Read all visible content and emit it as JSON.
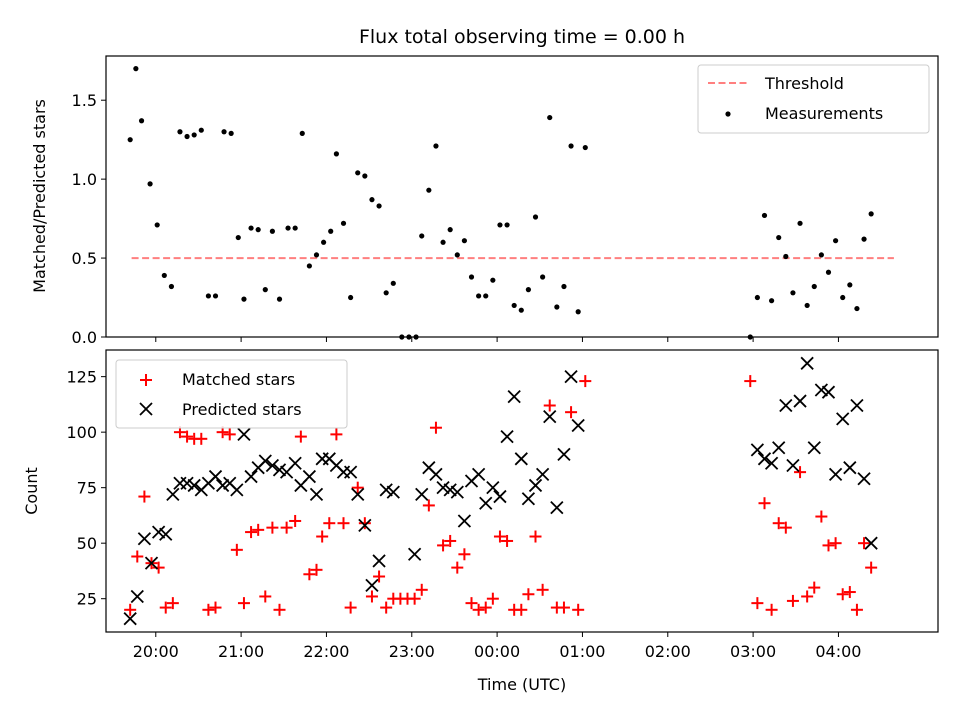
{
  "figure": {
    "title": "Flux total observing time = 0.00 h"
  },
  "chart_data": [
    {
      "type": "scatter",
      "ylabel": "Matched/Predicted stars",
      "xlim": [
        "19:25",
        "05:10"
      ],
      "ylim": [
        0,
        1.78
      ],
      "yticks": [
        0,
        0.5,
        1.0,
        1.5
      ],
      "ytick_labels": [
        "0.0",
        "0.5",
        "1.0",
        "1.5"
      ],
      "xticks": [
        "20:00",
        "21:00",
        "22:00",
        "23:00",
        "00:00",
        "01:00",
        "02:00",
        "03:00",
        "04:00"
      ],
      "legend": {
        "position": "top-right",
        "entries": [
          "Threshold",
          "Measurements"
        ]
      },
      "threshold": {
        "name": "Threshold",
        "value": 0.5,
        "x_range": [
          "19:43",
          "04:39"
        ],
        "color": "#ff7f7f",
        "style": "dashed"
      },
      "series": [
        {
          "name": "Measurements",
          "color": "#000000",
          "marker": "dot",
          "points": [
            [
              "19:42",
              1.25
            ],
            [
              "19:46",
              1.7
            ],
            [
              "19:50",
              1.37
            ],
            [
              "19:56",
              0.97
            ],
            [
              "20:01",
              0.71
            ],
            [
              "20:06",
              0.39
            ],
            [
              "20:11",
              0.32
            ],
            [
              "20:17",
              1.3
            ],
            [
              "20:22",
              1.27
            ],
            [
              "20:27",
              1.28
            ],
            [
              "20:32",
              1.31
            ],
            [
              "20:37",
              0.26
            ],
            [
              "20:42",
              0.26
            ],
            [
              "20:48",
              1.3
            ],
            [
              "20:53",
              1.29
            ],
            [
              "20:58",
              0.63
            ],
            [
              "21:02",
              0.24
            ],
            [
              "21:07",
              0.69
            ],
            [
              "21:12",
              0.68
            ],
            [
              "21:17",
              0.3
            ],
            [
              "21:22",
              0.67
            ],
            [
              "21:27",
              0.24
            ],
            [
              "21:33",
              0.69
            ],
            [
              "21:38",
              0.69
            ],
            [
              "21:43",
              1.29
            ],
            [
              "21:48",
              0.45
            ],
            [
              "21:53",
              0.52
            ],
            [
              "21:58",
              0.6
            ],
            [
              "22:03",
              0.67
            ],
            [
              "22:07",
              1.16
            ],
            [
              "22:12",
              0.72
            ],
            [
              "22:17",
              0.25
            ],
            [
              "22:22",
              1.04
            ],
            [
              "22:27",
              1.02
            ],
            [
              "22:32",
              0.87
            ],
            [
              "22:37",
              0.83
            ],
            [
              "22:42",
              0.28
            ],
            [
              "22:47",
              0.34
            ],
            [
              "22:53",
              0.0
            ],
            [
              "22:58",
              0.0
            ],
            [
              "23:03",
              0.0
            ],
            [
              "23:07",
              0.64
            ],
            [
              "23:12",
              0.93
            ],
            [
              "23:17",
              1.21
            ],
            [
              "23:22",
              0.6
            ],
            [
              "23:27",
              0.68
            ],
            [
              "23:32",
              0.52
            ],
            [
              "23:37",
              0.61
            ],
            [
              "23:42",
              0.38
            ],
            [
              "23:47",
              0.26
            ],
            [
              "23:52",
              0.26
            ],
            [
              "23:57",
              0.36
            ],
            [
              "00:02",
              0.71
            ],
            [
              "00:07",
              0.71
            ],
            [
              "00:12",
              0.2
            ],
            [
              "00:17",
              0.17
            ],
            [
              "00:22",
              0.3
            ],
            [
              "00:27",
              0.76
            ],
            [
              "00:32",
              0.38
            ],
            [
              "00:37",
              1.39
            ],
            [
              "00:42",
              0.19
            ],
            [
              "00:47",
              0.32
            ],
            [
              "00:52",
              1.21
            ],
            [
              "00:57",
              0.16
            ],
            [
              "01:02",
              1.2
            ],
            [
              "02:58",
              0.0
            ],
            [
              "03:03",
              0.25
            ],
            [
              "03:08",
              0.77
            ],
            [
              "03:13",
              0.23
            ],
            [
              "03:18",
              0.63
            ],
            [
              "03:23",
              0.51
            ],
            [
              "03:28",
              0.28
            ],
            [
              "03:33",
              0.72
            ],
            [
              "03:38",
              0.2
            ],
            [
              "03:43",
              0.32
            ],
            [
              "03:48",
              0.52
            ],
            [
              "03:53",
              0.41
            ],
            [
              "03:58",
              0.61
            ],
            [
              "04:03",
              0.25
            ],
            [
              "04:08",
              0.33
            ],
            [
              "04:13",
              0.18
            ],
            [
              "04:18",
              0.62
            ],
            [
              "04:23",
              0.78
            ]
          ]
        }
      ]
    },
    {
      "type": "scatter",
      "xlabel": "Time (UTC)",
      "ylabel": "Count",
      "xlim": [
        "19:25",
        "05:10"
      ],
      "ylim": [
        10,
        137
      ],
      "yticks": [
        25,
        50,
        75,
        100,
        125
      ],
      "xticks": [
        "20:00",
        "21:00",
        "22:00",
        "23:00",
        "00:00",
        "01:00",
        "02:00",
        "03:00",
        "04:00"
      ],
      "legend": {
        "position": "top-left",
        "entries": [
          "Matched stars",
          "Predicted stars"
        ]
      },
      "series": [
        {
          "name": "Matched stars",
          "color": "#ff0000",
          "marker": "plus",
          "points": [
            [
              "19:42",
              20
            ],
            [
              "19:47",
              44
            ],
            [
              "19:52",
              71
            ],
            [
              "19:57",
              41
            ],
            [
              "20:02",
              39
            ],
            [
              "20:07",
              21
            ],
            [
              "20:12",
              23
            ],
            [
              "20:17",
              100
            ],
            [
              "20:22",
              98
            ],
            [
              "20:27",
              97
            ],
            [
              "20:32",
              97
            ],
            [
              "20:37",
              20
            ],
            [
              "20:42",
              21
            ],
            [
              "20:47",
              100
            ],
            [
              "20:52",
              99
            ],
            [
              "20:57",
              47
            ],
            [
              "21:02",
              23
            ],
            [
              "21:07",
              55
            ],
            [
              "21:12",
              56
            ],
            [
              "21:17",
              26
            ],
            [
              "21:22",
              57
            ],
            [
              "21:27",
              20
            ],
            [
              "21:32",
              57
            ],
            [
              "21:38",
              60
            ],
            [
              "21:42",
              98
            ],
            [
              "21:48",
              36
            ],
            [
              "21:53",
              38
            ],
            [
              "21:57",
              53
            ],
            [
              "22:02",
              59
            ],
            [
              "22:07",
              99
            ],
            [
              "22:12",
              59
            ],
            [
              "22:17",
              21
            ],
            [
              "22:22",
              75
            ],
            [
              "22:27",
              59
            ],
            [
              "22:32",
              26
            ],
            [
              "22:37",
              35
            ],
            [
              "22:42",
              21
            ],
            [
              "22:47",
              25
            ],
            [
              "22:52",
              25
            ],
            [
              "22:57",
              25
            ],
            [
              "23:02",
              25
            ],
            [
              "23:07",
              29
            ],
            [
              "23:12",
              67
            ],
            [
              "23:17",
              102
            ],
            [
              "23:22",
              49
            ],
            [
              "23:27",
              51
            ],
            [
              "23:32",
              39
            ],
            [
              "23:37",
              45
            ],
            [
              "23:42",
              23
            ],
            [
              "23:47",
              20
            ],
            [
              "23:52",
              21
            ],
            [
              "23:57",
              25
            ],
            [
              "00:02",
              53
            ],
            [
              "00:07",
              51
            ],
            [
              "00:12",
              20
            ],
            [
              "00:17",
              20
            ],
            [
              "00:22",
              27
            ],
            [
              "00:27",
              53
            ],
            [
              "00:32",
              29
            ],
            [
              "00:37",
              112
            ],
            [
              "00:42",
              21
            ],
            [
              "00:47",
              21
            ],
            [
              "00:52",
              109
            ],
            [
              "00:57",
              20
            ],
            [
              "01:02",
              123
            ],
            [
              "02:58",
              123
            ],
            [
              "03:03",
              23
            ],
            [
              "03:08",
              68
            ],
            [
              "03:13",
              20
            ],
            [
              "03:18",
              59
            ],
            [
              "03:23",
              57
            ],
            [
              "03:28",
              24
            ],
            [
              "03:33",
              82
            ],
            [
              "03:38",
              26
            ],
            [
              "03:43",
              30
            ],
            [
              "03:48",
              62
            ],
            [
              "03:53",
              49
            ],
            [
              "03:58",
              50
            ],
            [
              "04:03",
              27
            ],
            [
              "04:08",
              28
            ],
            [
              "04:13",
              20
            ],
            [
              "04:18",
              50
            ],
            [
              "04:23",
              39
            ]
          ]
        },
        {
          "name": "Predicted stars",
          "color": "#000000",
          "marker": "cross",
          "points": [
            [
              "19:42",
              16
            ],
            [
              "19:47",
              26
            ],
            [
              "19:52",
              52
            ],
            [
              "19:57",
              41
            ],
            [
              "20:02",
              55
            ],
            [
              "20:07",
              54
            ],
            [
              "20:12",
              72
            ],
            [
              "20:17",
              77
            ],
            [
              "20:22",
              77
            ],
            [
              "20:27",
              76
            ],
            [
              "20:32",
              74
            ],
            [
              "20:37",
              77
            ],
            [
              "20:42",
              80
            ],
            [
              "20:47",
              76
            ],
            [
              "20:52",
              77
            ],
            [
              "20:57",
              74
            ],
            [
              "21:02",
              99
            ],
            [
              "21:07",
              80
            ],
            [
              "21:12",
              84
            ],
            [
              "21:17",
              87
            ],
            [
              "21:22",
              85
            ],
            [
              "21:27",
              83
            ],
            [
              "21:32",
              82
            ],
            [
              "21:38",
              86
            ],
            [
              "21:42",
              76
            ],
            [
              "21:48",
              80
            ],
            [
              "21:53",
              72
            ],
            [
              "21:57",
              88
            ],
            [
              "22:02",
              88
            ],
            [
              "22:07",
              85
            ],
            [
              "22:12",
              82
            ],
            [
              "22:17",
              82
            ],
            [
              "22:22",
              72
            ],
            [
              "22:27",
              58
            ],
            [
              "22:32",
              31
            ],
            [
              "22:37",
              42
            ],
            [
              "22:42",
              74
            ],
            [
              "22:47",
              73
            ],
            [
              "23:02",
              45
            ],
            [
              "23:07",
              72
            ],
            [
              "23:12",
              84
            ],
            [
              "23:17",
              81
            ],
            [
              "23:22",
              75
            ],
            [
              "23:27",
              74
            ],
            [
              "23:32",
              73
            ],
            [
              "23:37",
              60
            ],
            [
              "23:42",
              78
            ],
            [
              "23:47",
              81
            ],
            [
              "23:52",
              68
            ],
            [
              "23:57",
              75
            ],
            [
              "00:02",
              71
            ],
            [
              "00:07",
              98
            ],
            [
              "00:12",
              116
            ],
            [
              "00:17",
              88
            ],
            [
              "00:22",
              70
            ],
            [
              "00:27",
              76
            ],
            [
              "00:32",
              81
            ],
            [
              "00:37",
              107
            ],
            [
              "00:42",
              66
            ],
            [
              "00:47",
              90
            ],
            [
              "00:52",
              125
            ],
            [
              "00:57",
              103
            ],
            [
              "03:03",
              92
            ],
            [
              "03:08",
              88
            ],
            [
              "03:13",
              86
            ],
            [
              "03:18",
              93
            ],
            [
              "03:23",
              112
            ],
            [
              "03:28",
              85
            ],
            [
              "03:33",
              114
            ],
            [
              "03:38",
              131
            ],
            [
              "03:43",
              93
            ],
            [
              "03:48",
              119
            ],
            [
              "03:53",
              118
            ],
            [
              "03:58",
              81
            ],
            [
              "04:03",
              106
            ],
            [
              "04:08",
              84
            ],
            [
              "04:13",
              112
            ],
            [
              "04:18",
              79
            ],
            [
              "04:23",
              50
            ]
          ]
        }
      ]
    }
  ]
}
